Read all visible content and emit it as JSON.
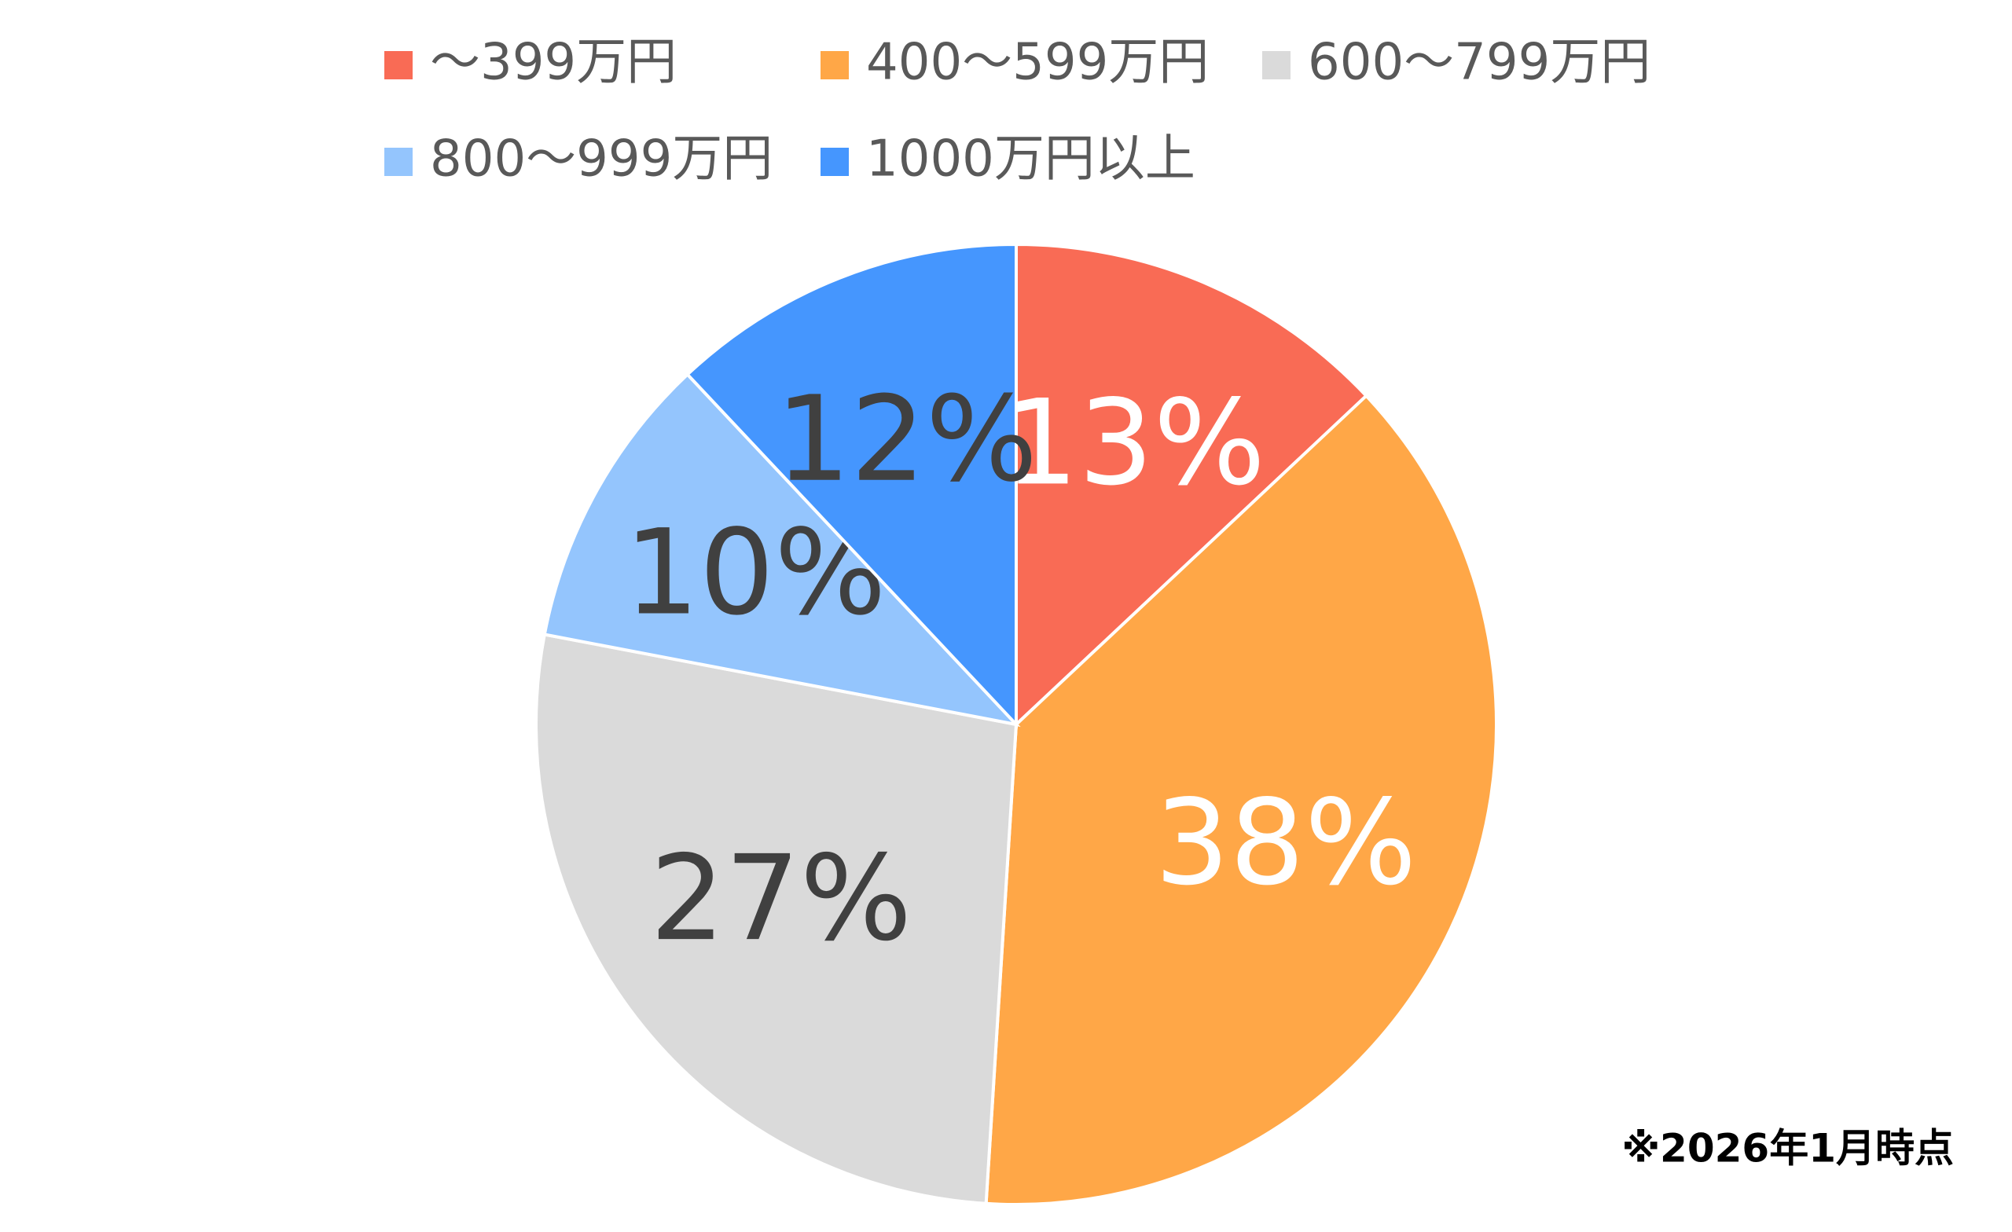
{
  "chart_data": {
    "type": "pie",
    "categories": [
      "～399万円",
      "400～599万円",
      "600～799万円",
      "800～999万円",
      "1000万円以上"
    ],
    "values": [
      13,
      38,
      27,
      10,
      12
    ],
    "value_labels": [
      "13%",
      "38%",
      "27%",
      "10%",
      "12%"
    ],
    "colors": [
      "#F96B55",
      "#FFA747",
      "#DADADA",
      "#94C5FD",
      "#4596FE"
    ],
    "label_colors": [
      "#ffffff",
      "#ffffff",
      "#404040",
      "#404040",
      "#404040"
    ],
    "legend": "top",
    "note": "※2026年1月時点"
  }
}
